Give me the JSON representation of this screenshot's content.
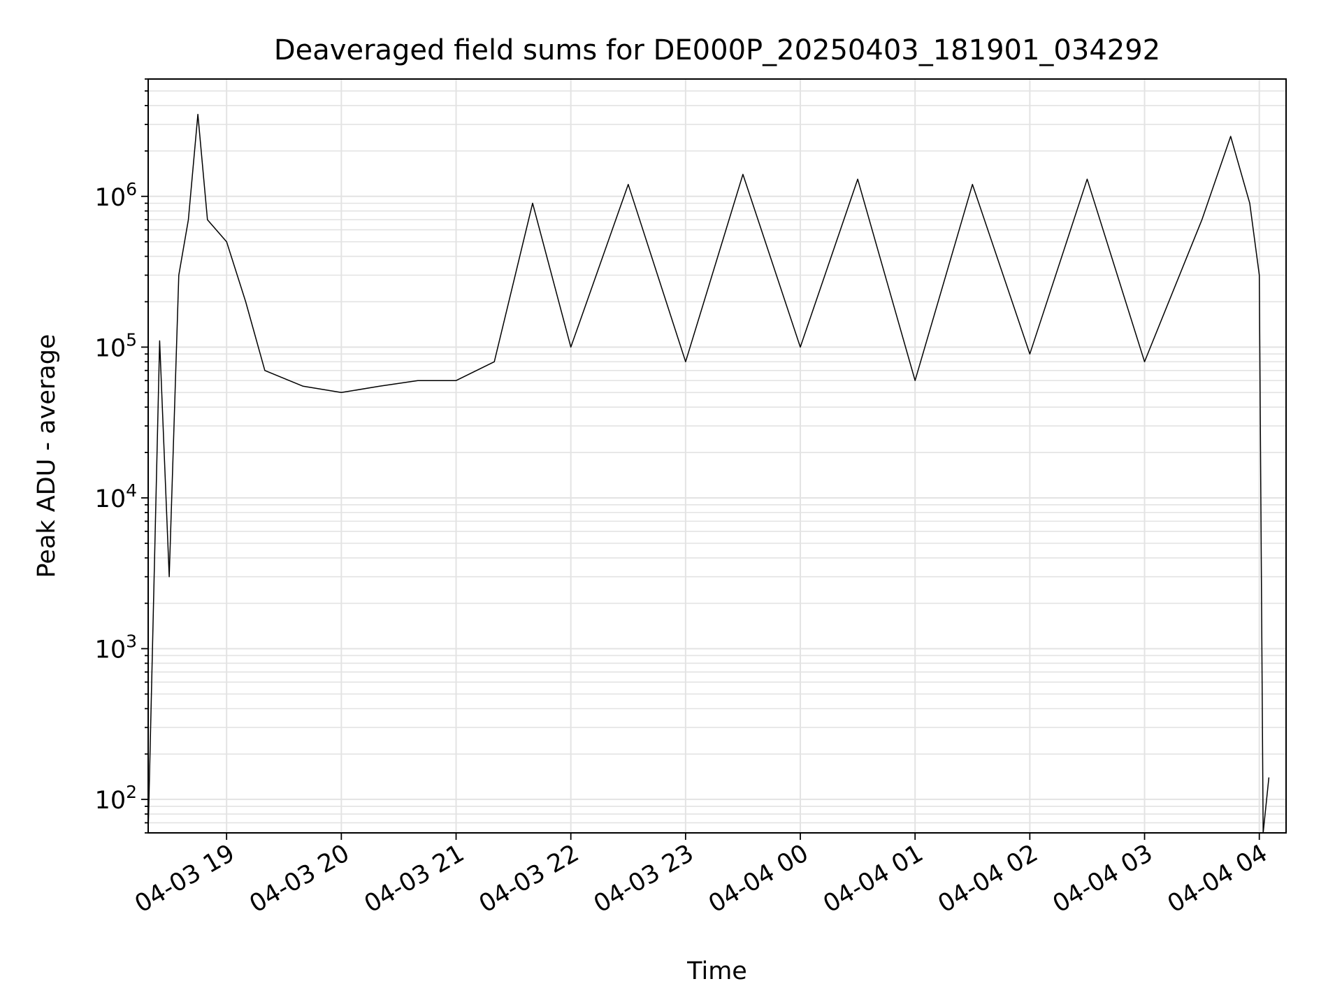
{
  "chart_data": {
    "type": "line",
    "title": "Deaveraged field sums for DE000P_20250403_181901_034292",
    "xlabel": "Time",
    "ylabel": "Peak ADU - average",
    "x_ticks": [
      "04-03 19",
      "04-03 20",
      "04-03 21",
      "04-03 22",
      "04-03 23",
      "04-04 00",
      "04-04 01",
      "04-04 02",
      "04-04 03",
      "04-04 04"
    ],
    "y_ticks": [
      {
        "base": "10",
        "exp": "2"
      },
      {
        "base": "10",
        "exp": "3"
      },
      {
        "base": "10",
        "exp": "4"
      },
      {
        "base": "10",
        "exp": "5"
      },
      {
        "base": "10",
        "exp": "6"
      }
    ],
    "xlim": [
      "2025-04-03 18:19",
      "2025-04-04 04:14"
    ],
    "ylim": [
      60,
      6000000
    ],
    "yscale": "log",
    "grid": true,
    "line_color": "#000000",
    "series": [
      {
        "x": [
          "2025-04-03 18:19",
          "2025-04-03 18:25",
          "2025-04-03 18:30",
          "2025-04-03 18:35",
          "2025-04-03 18:40",
          "2025-04-03 18:45",
          "2025-04-03 18:50",
          "2025-04-03 19:00",
          "2025-04-03 19:10",
          "2025-04-03 19:20",
          "2025-04-03 19:40",
          "2025-04-03 20:00",
          "2025-04-03 20:20",
          "2025-04-03 20:40",
          "2025-04-03 21:00",
          "2025-04-03 21:20",
          "2025-04-03 21:40",
          "2025-04-03 22:00",
          "2025-04-03 22:30",
          "2025-04-03 23:00",
          "2025-04-03 23:30",
          "2025-04-04 00:00",
          "2025-04-04 00:30",
          "2025-04-04 01:00",
          "2025-04-04 01:30",
          "2025-04-04 02:00",
          "2025-04-04 02:30",
          "2025-04-04 03:00",
          "2025-04-04 03:30",
          "2025-04-04 03:45",
          "2025-04-04 03:55",
          "2025-04-04 04:00",
          "2025-04-04 04:02",
          "2025-04-04 04:05"
        ],
        "y": [
          60,
          110000,
          3000,
          300000,
          700000,
          3500000,
          700000,
          500000,
          200000,
          70000,
          55000,
          50000,
          55000,
          60000,
          60000,
          80000,
          900000,
          100000,
          1200000,
          80000,
          1400000,
          100000,
          1300000,
          60000,
          1200000,
          90000,
          1300000,
          80000,
          700000,
          2500000,
          900000,
          300000,
          60,
          140
        ]
      }
    ]
  }
}
